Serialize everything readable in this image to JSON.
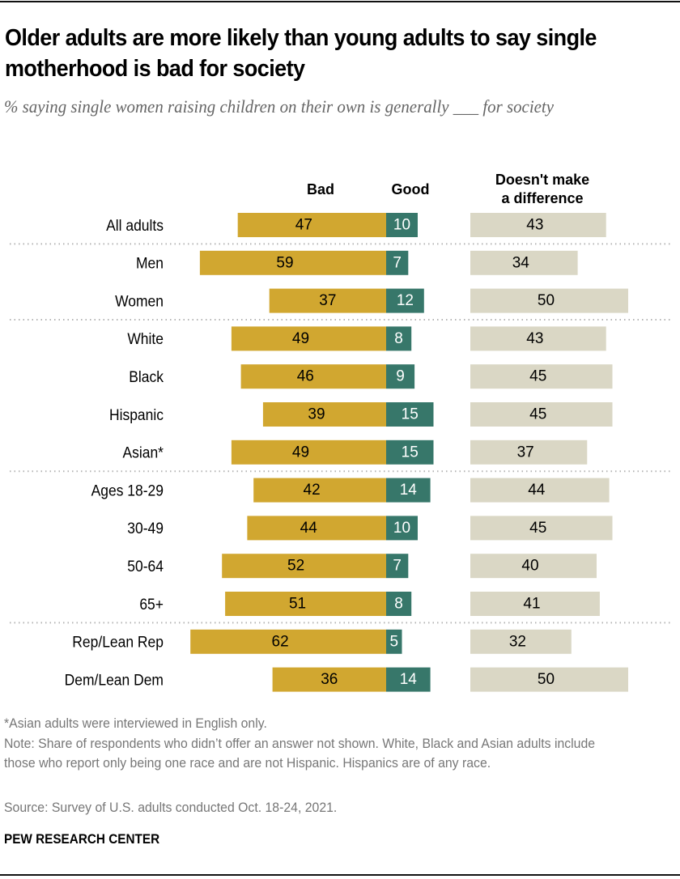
{
  "chart_data": {
    "type": "bar",
    "subtype": "diverging-stacked-horizontal-bar",
    "title": "Older adults are more likely than young adults to say single motherhood is bad for society",
    "subtitle": "% saying single women raising children on their own is generally ___ for society",
    "series_labels": {
      "bad": "Bad",
      "good": "Good",
      "no_difference": "Doesn't make a difference"
    },
    "series_colors": {
      "bad": "#D1A730",
      "good": "#37776A",
      "no_difference": "#DAD7C5"
    },
    "categories": [
      "All adults",
      "Men",
      "Women",
      "White",
      "Black",
      "Hispanic",
      "Asian*",
      "Ages 18-29",
      "30-49",
      "50-64",
      "65+",
      "Rep/Lean Rep",
      "Dem/Lean Dem"
    ],
    "groups_break_after": [
      0,
      2,
      6,
      10
    ],
    "series": [
      {
        "name": "Bad",
        "values": [
          47,
          59,
          37,
          49,
          46,
          39,
          49,
          42,
          44,
          52,
          51,
          62,
          36
        ]
      },
      {
        "name": "Good",
        "values": [
          10,
          7,
          12,
          8,
          9,
          15,
          15,
          14,
          10,
          7,
          8,
          5,
          14
        ]
      },
      {
        "name": "Doesn't make a difference",
        "values": [
          43,
          34,
          50,
          43,
          45,
          45,
          37,
          44,
          45,
          40,
          41,
          32,
          50
        ]
      }
    ],
    "xlim": [
      0,
      100
    ],
    "grid": false,
    "legend": "column-headers-top"
  },
  "header": {
    "bad_label": "Bad",
    "good_label": "Good",
    "nodiff_label_line1": "Doesn't make",
    "nodiff_label_line2": "a difference"
  },
  "footer": {
    "asterisk_note": "*Asian adults were interviewed in English only.",
    "note": "Note: Share of respondents who didn’t offer an answer not shown. White, Black and Asian adults include those who report only being one race and are not Hispanic. Hispanics are of any race.",
    "source": "Source: Survey of U.S. adults conducted Oct. 18-24, 2021.",
    "brand": "PEW RESEARCH CENTER"
  }
}
